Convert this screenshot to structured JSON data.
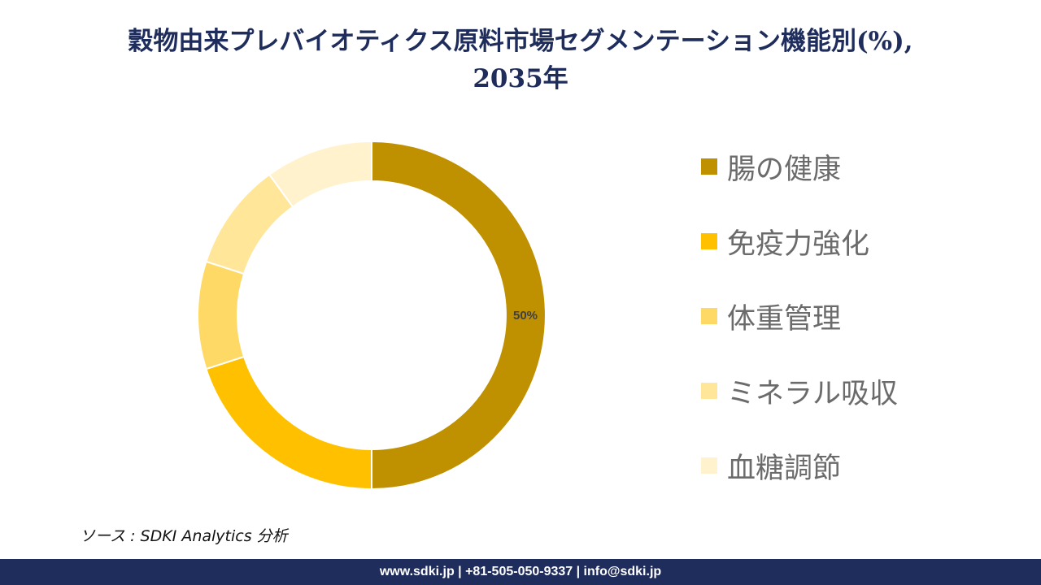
{
  "title": {
    "line1": "穀物由来プレバイオティクス原料市場セグメンテーション機能別(%),",
    "line2": "2035年"
  },
  "chart_data": {
    "type": "pie",
    "donut": true,
    "categories": [
      "腸の健康",
      "免疫力強化",
      "体重管理",
      "ミネラル吸収",
      "血糖調節"
    ],
    "values": [
      50,
      20,
      10,
      10,
      10
    ],
    "colors": [
      "#bf9000",
      "#ffc000",
      "#ffd966",
      "#ffe699",
      "#fff2cc"
    ],
    "data_labels": [
      "50%",
      "",
      "",
      "",
      ""
    ],
    "legend_position": "right"
  },
  "legend": {
    "items": [
      {
        "label": "腸の健康",
        "color": "#bf9000"
      },
      {
        "label": "免疫力強化",
        "color": "#ffc000"
      },
      {
        "label": "体重管理",
        "color": "#ffd966"
      },
      {
        "label": "ミネラル吸収",
        "color": "#ffe699"
      },
      {
        "label": "血糖調節",
        "color": "#fff2cc"
      }
    ]
  },
  "source": "ソース : SDKI Analytics 分析",
  "footer": "www.sdki.jp | +81-505-050-9337 | info@sdki.jp"
}
